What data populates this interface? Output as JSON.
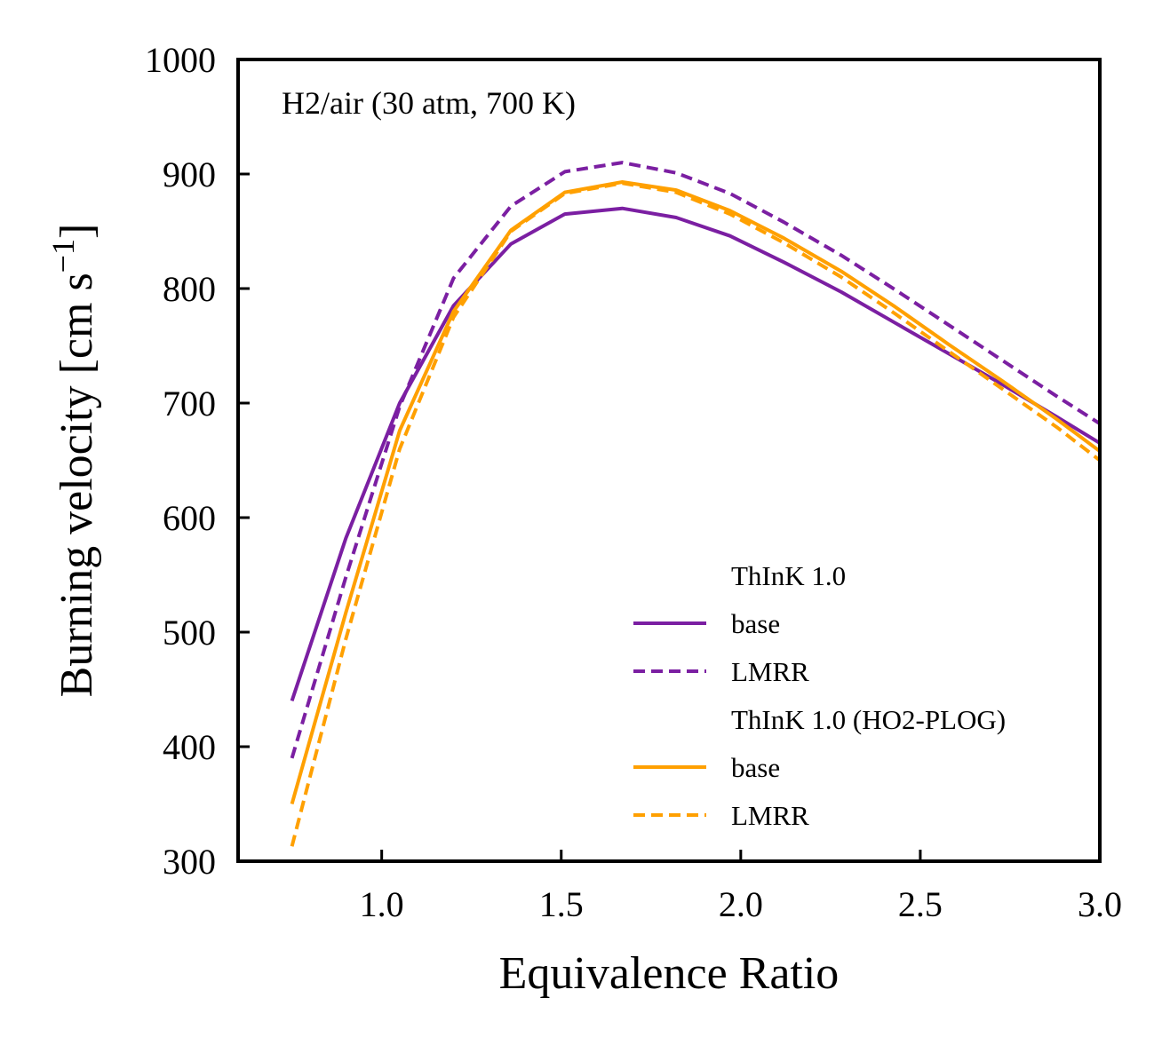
{
  "chart_data": {
    "type": "line",
    "title": "",
    "annotation": "H2/air (30 atm, 700 K)",
    "xlabel": "Equivalence Ratio",
    "ylabel_main": "Burning velocity [cm s",
    "ylabel_sup": "−1",
    "ylabel_close": "]",
    "xlim": [
      0.6,
      3.0
    ],
    "ylim": [
      300,
      1000
    ],
    "xticks": [
      1.0,
      1.5,
      2.0,
      2.5,
      3.0
    ],
    "xtick_labels": [
      "1.0",
      "1.5",
      "2.0",
      "2.5",
      "3.0"
    ],
    "yticks": [
      300,
      400,
      500,
      600,
      700,
      800,
      900,
      1000
    ],
    "ytick_labels": [
      "300",
      "400",
      "500",
      "600",
      "700",
      "800",
      "900",
      "1000"
    ],
    "grid": false,
    "legend_position": "lower-right",
    "legend_groups": [
      {
        "title": "ThInK 1.0",
        "entries": [
          "base",
          "LMRR"
        ]
      },
      {
        "title": "ThInK 1.0 (HO2-PLOG)",
        "entries": [
          "base",
          "LMRR"
        ]
      }
    ],
    "x": [
      0.75,
      0.9,
      1.05,
      1.2,
      1.36,
      1.51,
      1.67,
      1.82,
      1.97,
      2.12,
      2.28,
      2.43,
      2.58,
      2.73,
      2.88,
      3.0
    ],
    "series": [
      {
        "group": "ThInK 1.0",
        "label": "base",
        "color": "#7b1fa2",
        "dash": "solid",
        "values": [
          440,
          582,
          700,
          785,
          839,
          865,
          870,
          862,
          846,
          823,
          797,
          770,
          743,
          716,
          688,
          665
        ]
      },
      {
        "group": "ThInK 1.0",
        "label": "LMRR",
        "color": "#7b1fa2",
        "dash": "dashed",
        "values": [
          390,
          548,
          697,
          809,
          872,
          902,
          910,
          901,
          883,
          858,
          829,
          799,
          768,
          737,
          706,
          682
        ]
      },
      {
        "group": "ThInK 1.0 (HO2-PLOG)",
        "label": "base",
        "color": "#ffa000",
        "dash": "solid",
        "values": [
          350,
          517,
          676,
          780,
          851,
          884,
          893,
          886,
          868,
          844,
          815,
          784,
          751,
          719,
          686,
          658
        ]
      },
      {
        "group": "ThInK 1.0 (HO2-PLOG)",
        "label": "LMRR",
        "color": "#ffa000",
        "dash": "dashed",
        "values": [
          313,
          494,
          660,
          775,
          850,
          883,
          892,
          884,
          865,
          840,
          810,
          778,
          745,
          712,
          679,
          650
        ]
      }
    ]
  }
}
